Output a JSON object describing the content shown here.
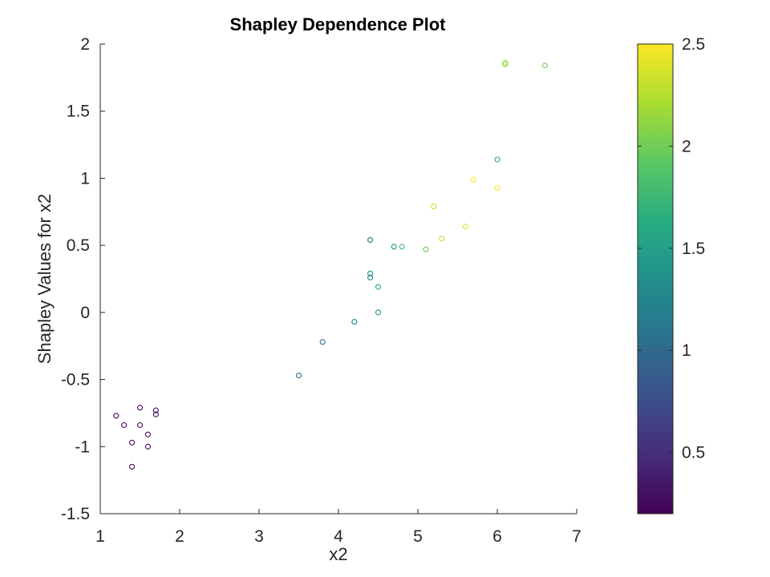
{
  "chart_data": {
    "type": "scatter",
    "title": "Shapley Dependence Plot",
    "xlabel": "x2",
    "ylabel": "Shapley Values for x2",
    "xlim": [
      1,
      7
    ],
    "ylim": [
      -1.5,
      2
    ],
    "xticks": [
      "1",
      "2",
      "3",
      "4",
      "5",
      "6",
      "7"
    ],
    "yticks": [
      "-1.5",
      "-1",
      "-0.5",
      "0",
      "0.5",
      "1",
      "1.5",
      "2"
    ],
    "grid": false,
    "marker": "open-circle",
    "colorbar": {
      "colormap": "viridis",
      "clim": [
        0.2,
        2.5
      ],
      "ticks": [
        "0.5",
        "1",
        "1.5",
        "2",
        "2.5"
      ],
      "stops": [
        "#440154",
        "#472c7a",
        "#3b518b",
        "#2c718e",
        "#21908d",
        "#27ad81",
        "#5cc863",
        "#aadc32",
        "#fde725"
      ]
    },
    "points": [
      {
        "x": 1.2,
        "y": -0.77,
        "c": 0.2
      },
      {
        "x": 1.3,
        "y": -0.84,
        "c": 0.2
      },
      {
        "x": 1.4,
        "y": -0.97,
        "c": 0.2
      },
      {
        "x": 1.4,
        "y": -1.15,
        "c": 0.2
      },
      {
        "x": 1.5,
        "y": -0.71,
        "c": 0.2
      },
      {
        "x": 1.5,
        "y": -0.84,
        "c": 0.2
      },
      {
        "x": 1.6,
        "y": -0.91,
        "c": 0.2
      },
      {
        "x": 1.6,
        "y": -1.0,
        "c": 0.2
      },
      {
        "x": 1.7,
        "y": -0.73,
        "c": 0.3
      },
      {
        "x": 1.7,
        "y": -0.76,
        "c": 0.3
      },
      {
        "x": 3.5,
        "y": -0.47,
        "c": 1.0
      },
      {
        "x": 3.8,
        "y": -0.22,
        "c": 1.1
      },
      {
        "x": 4.2,
        "y": -0.07,
        "c": 1.3
      },
      {
        "x": 4.4,
        "y": 0.54,
        "c": 1.2
      },
      {
        "x": 4.4,
        "y": 0.29,
        "c": 1.3
      },
      {
        "x": 4.4,
        "y": 0.26,
        "c": 1.2
      },
      {
        "x": 4.5,
        "y": 0.19,
        "c": 1.5
      },
      {
        "x": 4.5,
        "y": 0.0,
        "c": 1.3
      },
      {
        "x": 4.7,
        "y": 0.49,
        "c": 1.4
      },
      {
        "x": 4.8,
        "y": 0.49,
        "c": 1.8
      },
      {
        "x": 5.1,
        "y": 0.47,
        "c": 2.0
      },
      {
        "x": 5.2,
        "y": 0.79,
        "c": 2.3
      },
      {
        "x": 5.3,
        "y": 0.55,
        "c": 2.3
      },
      {
        "x": 5.6,
        "y": 0.64,
        "c": 2.4
      },
      {
        "x": 5.7,
        "y": 0.99,
        "c": 2.5
      },
      {
        "x": 6.0,
        "y": 0.93,
        "c": 2.5
      },
      {
        "x": 6.0,
        "y": 1.14,
        "c": 1.5
      },
      {
        "x": 6.1,
        "y": 1.86,
        "c": 2.2
      },
      {
        "x": 6.1,
        "y": 1.85,
        "c": 2.1
      },
      {
        "x": 6.6,
        "y": 1.84,
        "c": 2.0
      }
    ]
  }
}
